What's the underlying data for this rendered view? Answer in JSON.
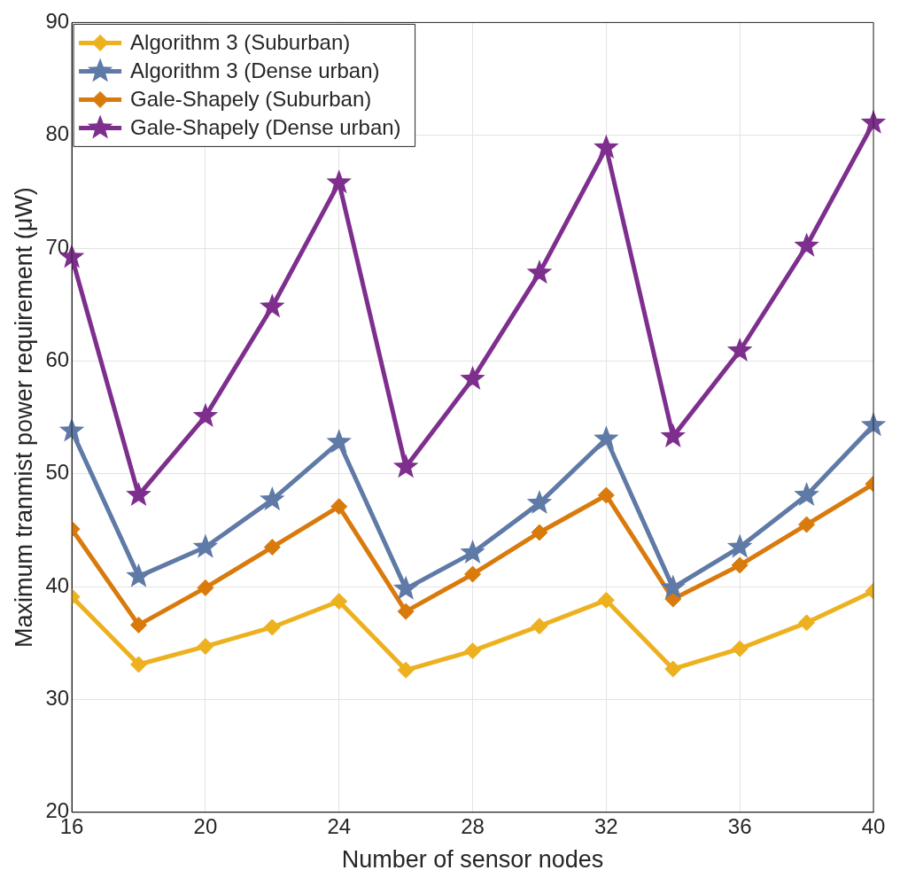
{
  "chart_data": {
    "type": "line",
    "xlabel": "Number of sensor nodes",
    "ylabel": "Maximum tranmist power requirement (μW)",
    "x": [
      16,
      18,
      20,
      22,
      24,
      26,
      28,
      30,
      32,
      34,
      36,
      38,
      40
    ],
    "series": [
      {
        "name": "Algorithm 3 (Suburban)",
        "color": "#edb120",
        "marker": "diamond",
        "values": [
          39.1,
          33.1,
          34.7,
          36.4,
          38.7,
          32.6,
          34.3,
          36.5,
          38.8,
          32.7,
          34.5,
          36.8,
          39.6
        ]
      },
      {
        "name": "Algorithm 3 (Dense urban)",
        "color": "#5f7aa6",
        "marker": "star",
        "values": [
          53.8,
          40.9,
          43.5,
          47.7,
          52.8,
          39.8,
          43.0,
          47.4,
          53.1,
          39.9,
          43.5,
          48.1,
          54.3
        ]
      },
      {
        "name": "Gale-Shapely (Suburban)",
        "color": "#d97a0c",
        "marker": "diamond",
        "values": [
          45.1,
          36.6,
          39.9,
          43.5,
          47.1,
          37.8,
          41.1,
          44.8,
          48.1,
          38.9,
          41.9,
          45.5,
          49.1
        ]
      },
      {
        "name": "Gale-Shapely (Dense urban)",
        "color": "#7e2f8e",
        "marker": "star",
        "values": [
          69.2,
          48.1,
          55.1,
          64.8,
          75.8,
          50.6,
          58.4,
          67.8,
          78.9,
          53.3,
          60.9,
          70.2,
          81.1
        ]
      }
    ],
    "xlim": [
      16,
      40
    ],
    "xticks": [
      16,
      20,
      24,
      28,
      32,
      36,
      40
    ],
    "ylim": [
      20,
      90
    ],
    "yticks": [
      20,
      30,
      40,
      50,
      60,
      70,
      80,
      90
    ],
    "grid": true,
    "legend": "top left",
    "line_style": "solid"
  }
}
